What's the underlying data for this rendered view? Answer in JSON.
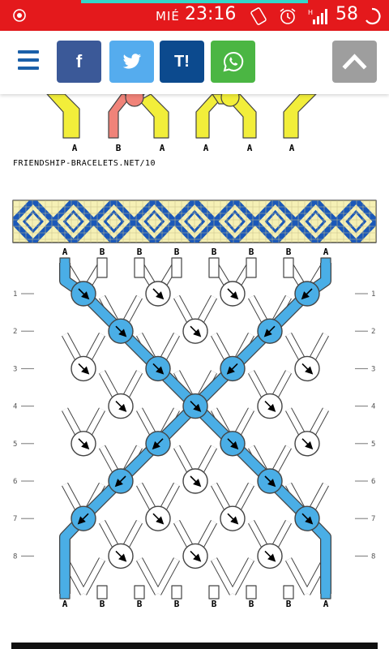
{
  "status_bar": {
    "day": "MIÉ",
    "time": "23:16",
    "battery": "58",
    "icons": [
      "location-icon",
      "vibrate-icon",
      "alarm-icon",
      "signal-icon",
      "battery-ring-icon"
    ]
  },
  "toolbar": {
    "buttons": [
      {
        "label": "f",
        "color": "#3b5998",
        "name": "facebook-share-button"
      },
      {
        "label": "",
        "color": "#55acee",
        "name": "twitter-share-button"
      },
      {
        "label": "T!",
        "color": "#0c4a8e",
        "name": "tuenti-share-button"
      },
      {
        "label": "",
        "color": "#4bb643",
        "name": "whatsapp-share-button"
      }
    ]
  },
  "top_strings": [
    "A",
    "B",
    "A",
    "A",
    "A",
    "A"
  ],
  "caption": "FRIENDSHIP-BRACELETS.NET/10",
  "pattern": {
    "top_labels": [
      "A",
      "B",
      "B",
      "B",
      "B",
      "B",
      "B",
      "A"
    ],
    "bottom_labels": [
      "A",
      "B",
      "B",
      "B",
      "B",
      "B",
      "B",
      "A"
    ],
    "row_numbers": [
      "1",
      "2",
      "3",
      "4",
      "5",
      "6",
      "7",
      "8"
    ],
    "colors": {
      "A": "#4aaee6",
      "B": "#ffffff",
      "outline": "#444444",
      "diamond_fill": "#f5f0b5",
      "diamond_line": "#1b58b8",
      "yellow": "#f2ee3a",
      "salmon": "#f08379"
    }
  }
}
